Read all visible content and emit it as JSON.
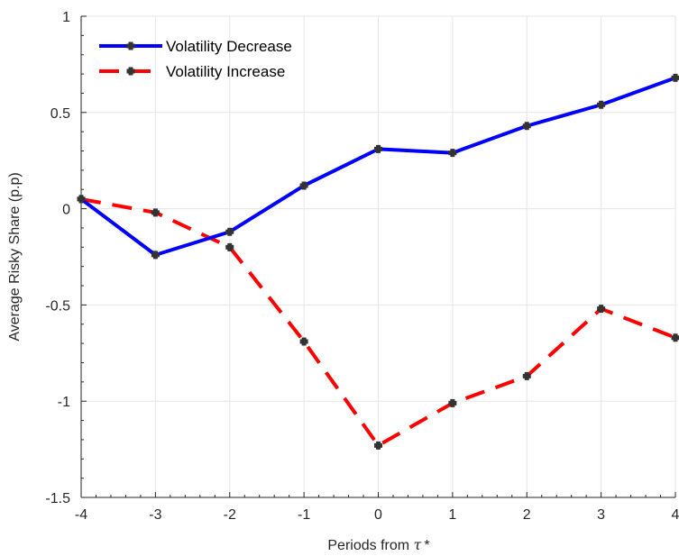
{
  "chart_data": {
    "type": "line",
    "title": "",
    "xlabel": "Periods from ",
    "xlabel_symbol": "τ",
    "xlabel_suffix": "*",
    "ylabel": "Average Risky Share (p.p)",
    "xlim": [
      -4,
      4
    ],
    "ylim": [
      -1.5,
      1
    ],
    "x_ticks": [
      "-4",
      "-3",
      "-2",
      "-1",
      "0",
      "1",
      "2",
      "3",
      "4"
    ],
    "y_ticks": [
      "-1.5",
      "-1",
      "-0.5",
      "0",
      "0.5",
      "1"
    ],
    "grid": true,
    "legend_position": "top-left",
    "x": [
      -4,
      -3,
      -2,
      -1,
      0,
      1,
      2,
      3,
      4
    ],
    "series": [
      {
        "name": "Volatility Decrease",
        "values": [
          0.05,
          -0.24,
          -0.12,
          0.12,
          0.31,
          0.29,
          0.43,
          0.54,
          0.68
        ],
        "color": "#0000ff",
        "style": "solid"
      },
      {
        "name": "Volatility Increase",
        "values": [
          0.05,
          -0.02,
          -0.2,
          -0.69,
          -1.23,
          -1.01,
          -0.87,
          -0.52,
          -0.67
        ],
        "color": "#ff0000",
        "style": "dashed"
      }
    ],
    "marker_color": "#333333"
  }
}
